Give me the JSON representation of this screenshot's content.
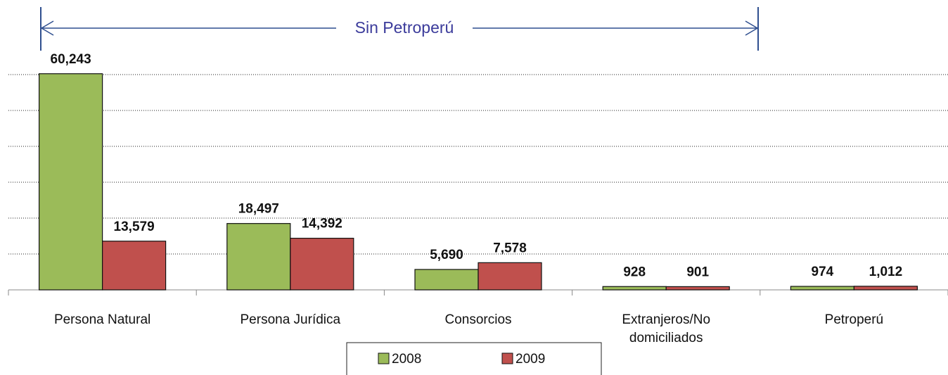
{
  "chart_data": {
    "type": "bar",
    "annotation": "Sin Petroperú",
    "categories": [
      "Persona Natural",
      "Persona Jurídica",
      "Consorcios",
      "Extranjeros/No domiciliados",
      "Petroperú"
    ],
    "series": [
      {
        "name": "2008",
        "color": "#9bbb59",
        "values": [
          60243,
          18497,
          5690,
          928,
          974
        ],
        "value_labels": [
          "60,243",
          "18,497",
          "5,690",
          "928",
          "974"
        ]
      },
      {
        "name": "2009",
        "color": "#c0504d",
        "values": [
          13579,
          14392,
          7578,
          901,
          1012
        ],
        "value_labels": [
          "13,579",
          "14,392",
          "7,578",
          "901",
          "1,012"
        ]
      }
    ],
    "ylim": [
      0,
      60000
    ],
    "yticks": [
      0,
      10000,
      20000,
      30000,
      40000,
      50000,
      60000
    ],
    "grid": true
  }
}
